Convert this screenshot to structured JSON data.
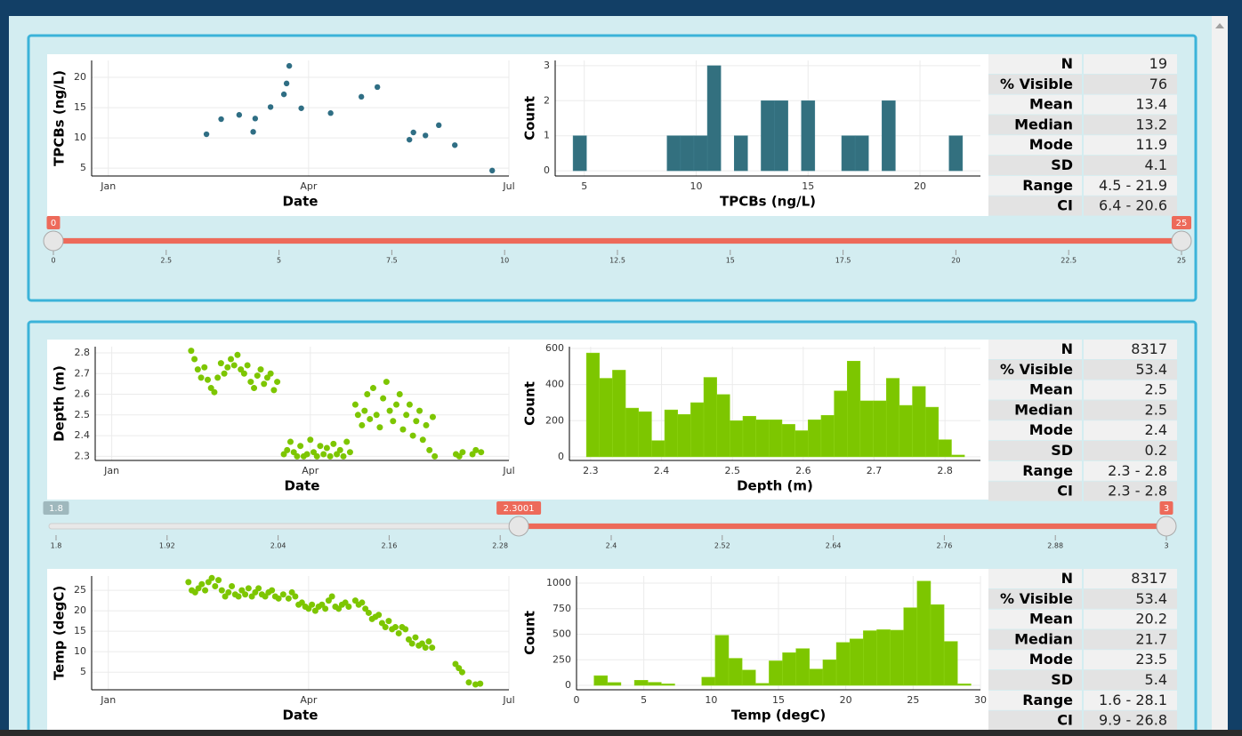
{
  "chart_data": [
    {
      "type": "scatter",
      "xlabel": "Date",
      "ylabel": "TPCBs (ng/L)",
      "color": "#2f6e84",
      "x": [
        1.47,
        1.69,
        1.96,
        2.17,
        2.2,
        2.43,
        2.63,
        2.67,
        2.71,
        2.89,
        3.33,
        3.79,
        4.03,
        4.51,
        4.57,
        4.75,
        4.95,
        5.19,
        5.75
      ],
      "y": [
        10.6,
        13.1,
        13.8,
        11.0,
        13.2,
        15.1,
        17.2,
        19.0,
        21.9,
        14.9,
        14.1,
        16.8,
        18.4,
        9.7,
        10.9,
        10.4,
        12.1,
        8.8,
        4.6
      ],
      "xlim": [
        -0.25,
        6
      ],
      "xticks": [
        {
          "value": 0,
          "label": "Jan"
        },
        {
          "value": 3,
          "label": "Apr"
        },
        {
          "value": 6,
          "label": "Jul"
        }
      ],
      "ylim": [
        3.7,
        22.8
      ],
      "yticks": [
        5,
        10,
        15,
        20
      ],
      "grid": true
    },
    {
      "type": "histogram",
      "xlabel": "TPCBs (ng/L)",
      "ylabel": "Count",
      "color": "#33707f",
      "bins": [
        4.5,
        5.1,
        5.7,
        6.3,
        6.9,
        7.5,
        8.1,
        8.7,
        9.3,
        9.9,
        10.5,
        11.1,
        11.7,
        12.3,
        12.9,
        13.5,
        14.1,
        14.7,
        15.3,
        15.9,
        16.5,
        17.1,
        17.7,
        18.3,
        18.9,
        19.5,
        20.1,
        20.7,
        21.3,
        21.9
      ],
      "counts": [
        1,
        0,
        0,
        0,
        0,
        0,
        0,
        1,
        1,
        1,
        3,
        0,
        1,
        0,
        2,
        2,
        0,
        2,
        0,
        0,
        1,
        1,
        0,
        2,
        0,
        0,
        0,
        0,
        1
      ],
      "xlim": [
        3.7,
        22.7
      ],
      "xticks": [
        5,
        10,
        15,
        20
      ],
      "ylim": [
        -0.15,
        3.15
      ],
      "yticks": [
        0,
        1,
        2,
        3
      ],
      "grid": true
    },
    {
      "type": "scatter",
      "xlabel": "Date",
      "ylabel": "Depth (m)",
      "color": "#7dc600",
      "x": [
        1.2,
        1.25,
        1.3,
        1.35,
        1.4,
        1.45,
        1.5,
        1.55,
        1.6,
        1.65,
        1.7,
        1.75,
        1.8,
        1.85,
        1.9,
        1.95,
        2.0,
        2.05,
        2.1,
        2.15,
        2.2,
        2.25,
        2.3,
        2.35,
        2.4,
        2.45,
        2.5,
        2.6,
        2.65,
        2.7,
        2.75,
        2.8,
        2.85,
        2.9,
        2.95,
        3.0,
        3.05,
        3.1,
        3.15,
        3.2,
        3.25,
        3.3,
        3.35,
        3.4,
        3.45,
        3.5,
        3.55,
        3.6,
        3.68,
        3.72,
        3.78,
        3.82,
        3.86,
        3.9,
        3.95,
        4.0,
        4.05,
        4.1,
        4.15,
        4.2,
        4.25,
        4.3,
        4.35,
        4.4,
        4.45,
        4.5,
        4.55,
        4.6,
        4.65,
        4.7,
        4.75,
        4.8,
        4.85,
        4.88,
        5.2,
        5.25,
        5.3,
        5.45,
        5.5,
        5.58
      ],
      "y": [
        2.81,
        2.77,
        2.72,
        2.68,
        2.73,
        2.67,
        2.63,
        2.61,
        2.68,
        2.75,
        2.7,
        2.73,
        2.77,
        2.74,
        2.79,
        2.72,
        2.7,
        2.74,
        2.66,
        2.63,
        2.69,
        2.72,
        2.65,
        2.68,
        2.7,
        2.62,
        2.66,
        2.31,
        2.33,
        2.37,
        2.32,
        2.3,
        2.35,
        2.3,
        2.31,
        2.38,
        2.32,
        2.3,
        2.35,
        2.31,
        2.34,
        2.3,
        2.36,
        2.31,
        2.33,
        2.3,
        2.37,
        2.32,
        2.55,
        2.5,
        2.45,
        2.52,
        2.6,
        2.48,
        2.63,
        2.5,
        2.44,
        2.58,
        2.66,
        2.52,
        2.47,
        2.55,
        2.6,
        2.43,
        2.5,
        2.55,
        2.4,
        2.47,
        2.52,
        2.38,
        2.45,
        2.33,
        2.49,
        2.3,
        2.31,
        2.3,
        2.32,
        2.31,
        2.33,
        2.32
      ],
      "xlim": [
        -0.25,
        6
      ],
      "xticks": [
        {
          "value": 0,
          "label": "Jan"
        },
        {
          "value": 3,
          "label": "Apr"
        },
        {
          "value": 6,
          "label": "Jul"
        }
      ],
      "ylim": [
        2.28,
        2.83
      ],
      "yticks": [
        2.3,
        2.4,
        2.5,
        2.6,
        2.7,
        2.8
      ],
      "grid": true
    },
    {
      "type": "histogram",
      "xlabel": "Depth (m)",
      "ylabel": "Count",
      "color": "#7dc600",
      "bins": [
        2.294,
        2.3124,
        2.3308,
        2.3492,
        2.3676,
        2.386,
        2.4044,
        2.4228,
        2.4412,
        2.4596,
        2.478,
        2.4964,
        2.5148,
        2.5332,
        2.5516,
        2.57,
        2.5884,
        2.6068,
        2.6252,
        2.6436,
        2.662,
        2.6804,
        2.6988,
        2.7172,
        2.7356,
        2.754,
        2.7724,
        2.7908,
        2.8092,
        2.8276
      ],
      "counts": [
        575,
        435,
        480,
        270,
        250,
        90,
        260,
        235,
        300,
        440,
        345,
        200,
        225,
        205,
        205,
        180,
        145,
        205,
        230,
        365,
        530,
        310,
        310,
        435,
        285,
        390,
        275,
        95,
        10
      ],
      "xlim": [
        2.27,
        2.85
      ],
      "xticks": [
        2.3,
        2.4,
        2.5,
        2.6,
        2.7,
        2.8
      ],
      "ylim": [
        -20,
        610
      ],
      "yticks": [
        0,
        200,
        400,
        600
      ],
      "grid": true
    },
    {
      "type": "scatter",
      "xlabel": "Date",
      "ylabel": "Temp (degC)",
      "color": "#7dc600",
      "x": [
        1.2,
        1.25,
        1.3,
        1.35,
        1.4,
        1.45,
        1.5,
        1.55,
        1.6,
        1.65,
        1.7,
        1.75,
        1.8,
        1.85,
        1.9,
        1.95,
        2.0,
        2.05,
        2.1,
        2.15,
        2.2,
        2.25,
        2.3,
        2.35,
        2.4,
        2.45,
        2.5,
        2.55,
        2.62,
        2.7,
        2.75,
        2.8,
        2.85,
        2.9,
        2.95,
        3.0,
        3.05,
        3.1,
        3.15,
        3.2,
        3.25,
        3.3,
        3.35,
        3.4,
        3.45,
        3.5,
        3.55,
        3.6,
        3.7,
        3.75,
        3.8,
        3.85,
        3.9,
        3.95,
        4.0,
        4.05,
        4.1,
        4.15,
        4.2,
        4.25,
        4.3,
        4.35,
        4.4,
        4.45,
        4.5,
        4.55,
        4.6,
        4.65,
        4.7,
        4.75,
        4.8,
        4.85,
        5.2,
        5.25,
        5.3,
        5.4,
        5.5,
        5.57
      ],
      "y": [
        27,
        25,
        24.5,
        25.5,
        26.5,
        25,
        27,
        28,
        26,
        27.5,
        25,
        23.5,
        24.5,
        26,
        24,
        23.5,
        25,
        24,
        25.5,
        23.5,
        24.5,
        25.5,
        24,
        23.5,
        24.5,
        25,
        23.5,
        23,
        24,
        23,
        24.5,
        23.5,
        21.5,
        22,
        21,
        20.5,
        21.5,
        20,
        21,
        21.5,
        20.5,
        22.5,
        23.5,
        21,
        20.5,
        21.5,
        22,
        21,
        22.5,
        21.5,
        22,
        20.5,
        19.5,
        18,
        18.5,
        19,
        17,
        16,
        17.5,
        15.5,
        16,
        14.5,
        16,
        15.5,
        13,
        12,
        13.5,
        11.5,
        12,
        11,
        12.5,
        11,
        7,
        6,
        5,
        2.5,
        2,
        2.2
      ],
      "xlim": [
        -0.25,
        6
      ],
      "xticks": [
        {
          "value": 0,
          "label": "Jan"
        },
        {
          "value": 3,
          "label": "Apr"
        },
        {
          "value": 6,
          "label": "Jul"
        }
      ],
      "ylim": [
        0.7,
        28.5
      ],
      "yticks": [
        5,
        10,
        15,
        20,
        25
      ],
      "grid": true
    },
    {
      "type": "histogram",
      "xlabel": "Temp (degC)",
      "ylabel": "Count",
      "color": "#7dc600",
      "bins": [
        1.3,
        2.3,
        3.3,
        4.3,
        5.3,
        6.3,
        7.3,
        8.3,
        9.3,
        10.3,
        11.3,
        12.3,
        13.3,
        14.3,
        15.3,
        16.3,
        17.3,
        18.3,
        19.3,
        20.3,
        21.3,
        22.3,
        23.3,
        24.3,
        25.3,
        26.3,
        27.3,
        28.3,
        29.3
      ],
      "counts": [
        95,
        28,
        0,
        50,
        30,
        15,
        0,
        0,
        80,
        490,
        265,
        150,
        20,
        240,
        320,
        360,
        160,
        250,
        420,
        455,
        535,
        545,
        540,
        760,
        1020,
        790,
        430,
        15
      ],
      "xlim": [
        0,
        30
      ],
      "xticks": [
        0,
        5,
        10,
        15,
        20,
        25,
        30
      ],
      "ylim": [
        -43,
        1070
      ],
      "yticks": [
        0,
        250,
        500,
        750,
        1000
      ],
      "grid": true
    }
  ],
  "stats": [
    [
      [
        "N",
        19
      ],
      [
        "% Visible",
        76
      ],
      [
        "Mean",
        13.4
      ],
      [
        "Median",
        13.2
      ],
      [
        "Mode",
        11.9
      ],
      [
        "SD",
        4.1
      ],
      [
        "Range",
        "4.5 - 21.9"
      ],
      [
        "CI",
        "6.4 - 20.6"
      ]
    ],
    [
      [
        "N",
        8317
      ],
      [
        "% Visible",
        53.4
      ],
      [
        "Mean",
        2.5
      ],
      [
        "Median",
        2.5
      ],
      [
        "Mode",
        2.4
      ],
      [
        "SD",
        0.2
      ],
      [
        "Range",
        "2.3 - 2.8"
      ],
      [
        "CI",
        "2.3 - 2.8"
      ]
    ],
    [
      [
        "N",
        8317
      ],
      [
        "% Visible",
        53.4
      ],
      [
        "Mean",
        20.2
      ],
      [
        "Median",
        21.7
      ],
      [
        "Mode",
        23.5
      ],
      [
        "SD",
        5.4
      ],
      [
        "Range",
        "1.6 - 28.1"
      ],
      [
        "CI",
        "9.9 - 26.8"
      ]
    ]
  ],
  "sliders": [
    {
      "min": 0,
      "max": 25,
      "from": 0,
      "to": 25,
      "ticks": [
        0,
        2.5,
        5,
        7.5,
        10,
        12.5,
        15,
        17.5,
        20,
        22.5,
        25
      ]
    },
    {
      "min": 1.8,
      "max": 3,
      "from": 2.3001,
      "to": 3,
      "ticks": [
        1.8,
        1.92,
        2.04,
        2.16,
        2.28,
        2.4,
        2.52,
        2.64,
        2.76,
        2.88,
        3
      ]
    }
  ]
}
